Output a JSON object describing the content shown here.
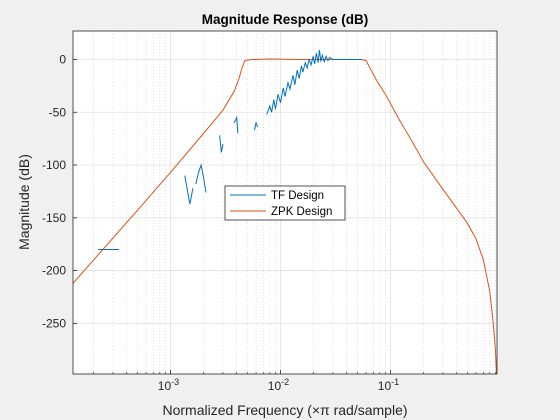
{
  "chart_data": {
    "type": "line",
    "title": "Magnitude Response (dB)",
    "xlabel": "Normalized Frequency (×π rad/sample)",
    "ylabel": "Magnitude (dB)",
    "xscale": "log",
    "xlim": [
      0.00013,
      0.93
    ],
    "ylim": [
      -298,
      27
    ],
    "grid": true,
    "minor_grid": true,
    "x_ticks": [
      {
        "value": 0.001,
        "base": "10",
        "exp": "-3"
      },
      {
        "value": 0.01,
        "base": "10",
        "exp": "-2"
      },
      {
        "value": 0.1,
        "base": "10",
        "exp": "-1"
      }
    ],
    "y_ticks": [
      0,
      -50,
      -100,
      -150,
      -200,
      -250
    ],
    "legend": {
      "position": "center",
      "entries": [
        "TF Design",
        "ZPK Design"
      ]
    },
    "colors": {
      "tf": "#0072BD",
      "zpk": "#D95319"
    },
    "series": [
      {
        "name": "ZPK Design",
        "points": [
          [
            0.00013,
            -212
          ],
          [
            0.0002,
            -190
          ],
          [
            0.0005,
            -143
          ],
          [
            0.001,
            -107
          ],
          [
            0.002,
            -70
          ],
          [
            0.003,
            -48
          ],
          [
            0.0038,
            -30
          ],
          [
            0.0042,
            -18
          ],
          [
            0.0045,
            -7
          ],
          [
            0.00475,
            -1
          ],
          [
            0.0055,
            0
          ],
          [
            0.008,
            0.5
          ],
          [
            0.015,
            0
          ],
          [
            0.025,
            0
          ],
          [
            0.04,
            0
          ],
          [
            0.055,
            0
          ],
          [
            0.06,
            -1
          ],
          [
            0.065,
            -8
          ],
          [
            0.075,
            -20
          ],
          [
            0.09,
            -33
          ],
          [
            0.12,
            -57
          ],
          [
            0.15,
            -74
          ],
          [
            0.2,
            -97
          ],
          [
            0.3,
            -123
          ],
          [
            0.4,
            -141
          ],
          [
            0.5,
            -155
          ],
          [
            0.6,
            -170
          ],
          [
            0.7,
            -190
          ],
          [
            0.8,
            -220
          ],
          [
            0.86,
            -250
          ],
          [
            0.9,
            -275
          ],
          [
            0.92,
            -298
          ]
        ]
      },
      {
        "name": "TF Design",
        "segments": [
          [
            [
              0.00022,
              -180
            ],
            [
              0.00034,
              -180
            ]
          ],
          [
            [
              0.00135,
              -110
            ],
            [
              0.0015,
              -137
            ],
            [
              0.0016,
              -122
            ]
          ],
          [
            [
              0.0017,
              -118
            ],
            [
              0.0018,
              -107
            ],
            [
              0.0019,
              -100
            ],
            [
              0.002,
              -112
            ],
            [
              0.0021,
              -126
            ]
          ],
          [
            [
              0.0028,
              -72
            ],
            [
              0.0029,
              -88
            ],
            [
              0.003,
              -80
            ]
          ],
          [
            [
              0.0038,
              -60
            ],
            [
              0.004,
              -55
            ],
            [
              0.0041,
              -70
            ]
          ],
          [
            [
              0.0058,
              -67
            ],
            [
              0.006,
              -60
            ],
            [
              0.0062,
              -64
            ]
          ],
          [
            [
              0.0075,
              -52
            ],
            [
              0.008,
              -44
            ],
            [
              0.0083,
              -50
            ],
            [
              0.0087,
              -38
            ],
            [
              0.009,
              -47
            ],
            [
              0.0095,
              -33
            ],
            [
              0.01,
              -41
            ],
            [
              0.0106,
              -27
            ],
            [
              0.011,
              -35
            ],
            [
              0.0117,
              -22
            ],
            [
              0.0122,
              -28
            ],
            [
              0.013,
              -15
            ],
            [
              0.0135,
              -24
            ],
            [
              0.0142,
              -10
            ],
            [
              0.0148,
              -18
            ],
            [
              0.0155,
              -6
            ],
            [
              0.016,
              -12
            ],
            [
              0.0168,
              -3
            ],
            [
              0.0175,
              -8
            ],
            [
              0.0182,
              0
            ],
            [
              0.019,
              -5
            ],
            [
              0.0198,
              3
            ],
            [
              0.0205,
              -4
            ],
            [
              0.0212,
              6
            ],
            [
              0.022,
              -3
            ],
            [
              0.0226,
              9
            ],
            [
              0.0233,
              -2
            ],
            [
              0.024,
              4
            ],
            [
              0.025,
              -2
            ],
            [
              0.026,
              3
            ],
            [
              0.027,
              -1
            ],
            [
              0.028,
              2
            ],
            [
              0.03,
              0
            ],
            [
              0.035,
              0
            ],
            [
              0.04,
              0
            ],
            [
              0.05,
              0
            ],
            [
              0.055,
              0
            ]
          ]
        ]
      }
    ]
  }
}
